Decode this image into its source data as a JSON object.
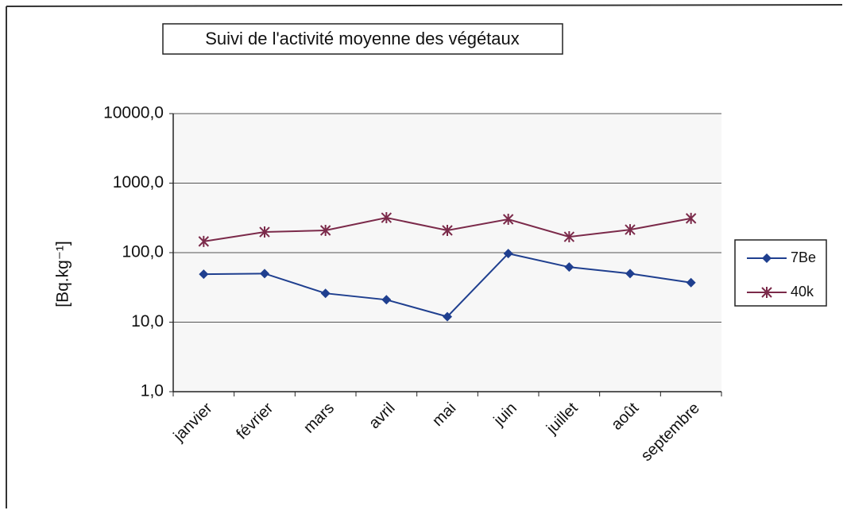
{
  "chart_data": {
    "type": "line",
    "title": "Suivi de l'activité moyenne  des végétaux",
    "y_label": "[Bq.kg⁻¹]",
    "categories": [
      "janvier",
      "février",
      "mars",
      "avril",
      "mai",
      "juin",
      "juillet",
      "août",
      "septembre"
    ],
    "series": [
      {
        "name": "7Be",
        "color": "#1f3f8f",
        "marker": "diamond",
        "values": [
          49,
          50,
          26,
          21,
          12,
          97,
          62,
          50,
          37
        ]
      },
      {
        "name": "40k",
        "color": "#7b2a4a",
        "marker": "star",
        "values": [
          145,
          198,
          209,
          318,
          209,
          302,
          169,
          214,
          311
        ]
      }
    ],
    "log_scale": true,
    "ylim": [
      1,
      10000
    ],
    "yticks": [
      {
        "value": 1,
        "label": "1,0"
      },
      {
        "value": 10,
        "label": "10,0"
      },
      {
        "value": 100,
        "label": "100,0"
      },
      {
        "value": 1000,
        "label": "1000,0"
      },
      {
        "value": 10000,
        "label": "10000,0"
      }
    ],
    "grid": true,
    "legend": "right"
  }
}
